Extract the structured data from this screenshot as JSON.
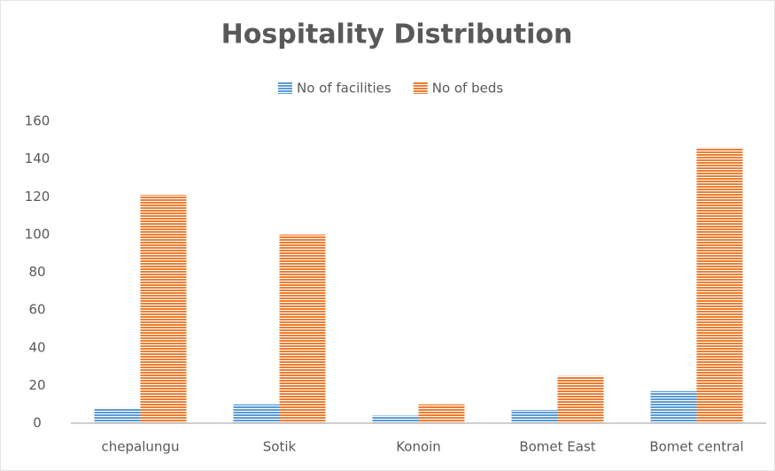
{
  "chart_data": {
    "type": "bar",
    "title": "Hospitality Distribution",
    "categories": [
      "chepalungu",
      "Sotik",
      "Konoin",
      "Bomet East",
      "Bomet central"
    ],
    "series": [
      {
        "name": "No of facilities",
        "color": "#5b9bd5",
        "values": [
          8,
          10,
          4,
          7,
          17
        ]
      },
      {
        "name": "No of beds",
        "color": "#ed7d31",
        "values": [
          121,
          100,
          10,
          25,
          146
        ]
      }
    ],
    "ylim": [
      0,
      160
    ],
    "yticks": [
      0,
      20,
      40,
      60,
      80,
      100,
      120,
      140,
      160
    ],
    "grid": false
  }
}
